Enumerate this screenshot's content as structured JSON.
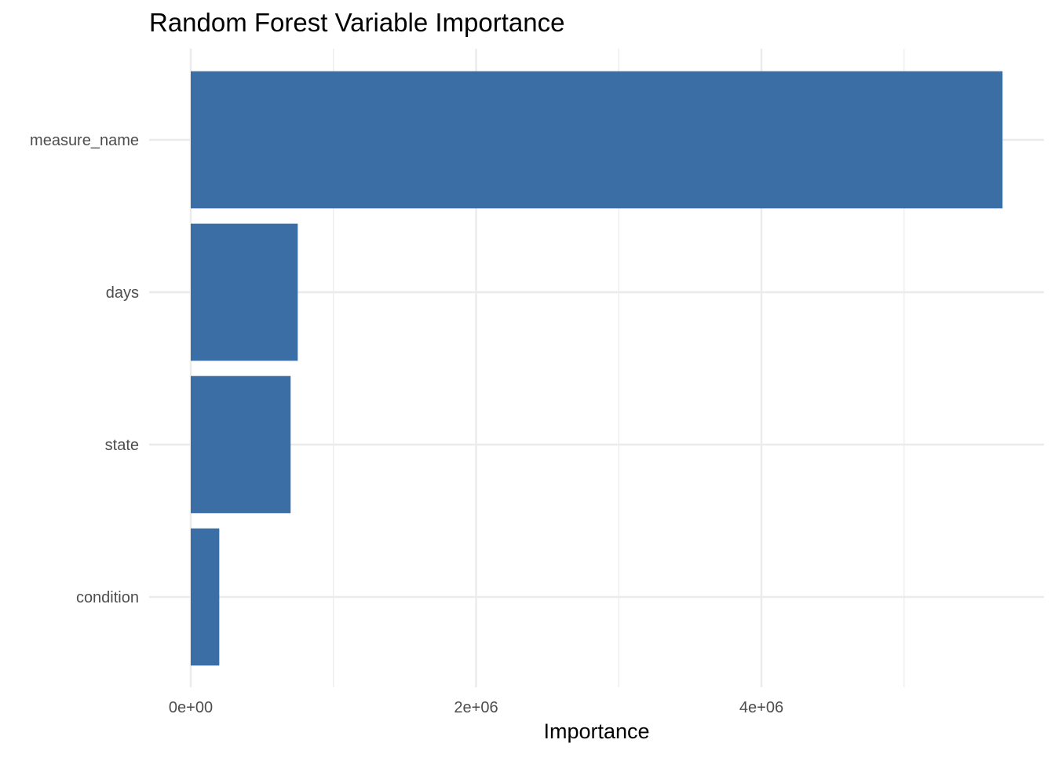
{
  "chart_data": {
    "type": "bar",
    "orientation": "horizontal",
    "title": "Random Forest Variable Importance",
    "xlabel": "Importance",
    "ylabel": "",
    "categories": [
      "measure_name",
      "days",
      "state",
      "condition"
    ],
    "values": [
      5690000,
      750000,
      700000,
      200000
    ],
    "xlim": [
      0,
      6000000
    ],
    "x_ticks": [
      0,
      2000000,
      4000000
    ],
    "x_tick_labels": [
      "0e+00",
      "2e+06",
      "4e+06"
    ],
    "grid": true,
    "bar_color": "#3A6EA5",
    "gridline_color": "#EBEBEB"
  }
}
